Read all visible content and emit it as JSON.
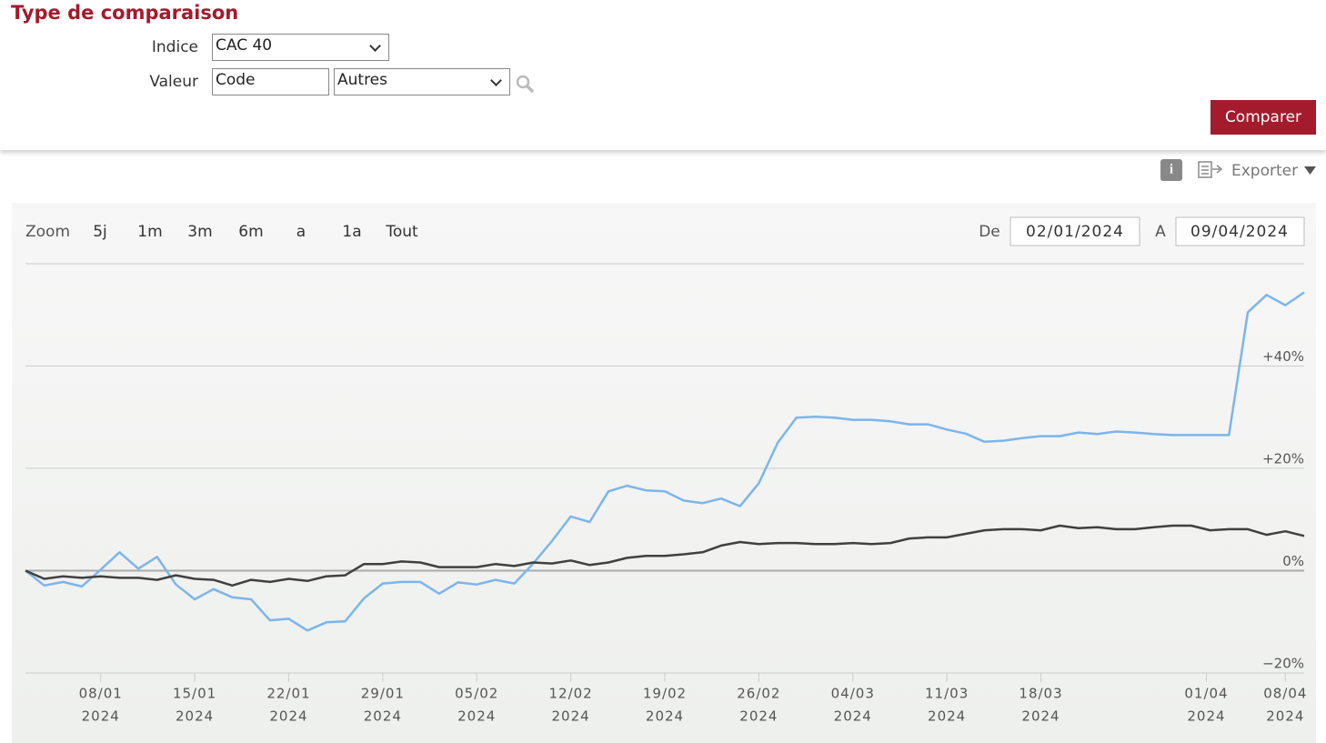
{
  "form": {
    "title": "Type de comparaison",
    "indice_label": "Indice",
    "indice_value": "CAC 40",
    "valeur_label": "Valeur",
    "code_value": "Code",
    "autres_value": "Autres",
    "button": "Comparer"
  },
  "toolbar": {
    "export": "Exporter"
  },
  "zoom": {
    "label": "Zoom",
    "buttons": [
      "5j",
      "1m",
      "3m",
      "6m",
      "a",
      "1a",
      "Tout"
    ]
  },
  "range": {
    "from_label": "De",
    "from": "02/01/2024",
    "to_label": "A",
    "to": "09/04/2024"
  },
  "chart_data": {
    "type": "line",
    "x": [
      "02/01/2024",
      "03/01/2024",
      "04/01/2024",
      "05/01/2024",
      "08/01/2024",
      "09/01/2024",
      "10/01/2024",
      "11/01/2024",
      "12/01/2024",
      "15/01/2024",
      "16/01/2024",
      "17/01/2024",
      "18/01/2024",
      "19/01/2024",
      "22/01/2024",
      "23/01/2024",
      "24/01/2024",
      "25/01/2024",
      "26/01/2024",
      "29/01/2024",
      "30/01/2024",
      "31/01/2024",
      "01/02/2024",
      "02/02/2024",
      "05/02/2024",
      "06/02/2024",
      "07/02/2024",
      "08/02/2024",
      "09/02/2024",
      "12/02/2024",
      "13/02/2024",
      "14/02/2024",
      "15/02/2024",
      "16/02/2024",
      "19/02/2024",
      "20/02/2024",
      "21/02/2024",
      "22/02/2024",
      "23/02/2024",
      "26/02/2024",
      "27/02/2024",
      "28/02/2024",
      "29/02/2024",
      "01/03/2024",
      "04/03/2024",
      "05/03/2024",
      "06/03/2024",
      "07/03/2024",
      "08/03/2024",
      "11/03/2024",
      "12/03/2024",
      "13/03/2024",
      "14/03/2024",
      "15/03/2024",
      "18/03/2024",
      "19/03/2024",
      "20/03/2024",
      "21/03/2024",
      "22/03/2024",
      "25/03/2024",
      "26/03/2024",
      "27/03/2024",
      "28/03/2024",
      "02/04/2024",
      "03/04/2024",
      "04/04/2024",
      "05/04/2024",
      "08/04/2024",
      "09/04/2024"
    ],
    "series": [
      {
        "color": "#7cb5ec",
        "values": [
          0,
          -2.9,
          -2.2,
          -3.1,
          0.2,
          3.6,
          0.4,
          2.7,
          -2.7,
          -5.6,
          -3.6,
          -5.2,
          -5.6,
          -9.7,
          -9.4,
          -11.7,
          -10.1,
          -9.9,
          -5.4,
          -2.5,
          -2.2,
          -2.2,
          -4.5,
          -2.3,
          -2.7,
          -1.8,
          -2.5,
          1.4,
          5.8,
          10.6,
          9.5,
          15.5,
          16.6,
          15.7,
          15.5,
          13.7,
          13.2,
          14.1,
          12.6,
          17.1,
          25,
          29.9,
          30.1,
          29.9,
          29.5,
          29.5,
          29.2,
          28.6,
          28.6,
          27.6,
          26.8,
          25.2,
          25.4,
          25.9,
          26.3,
          26.3,
          27,
          26.7,
          27.2,
          27,
          26.7,
          26.5,
          26.5,
          26.5,
          26.5,
          50.5,
          53.9,
          51.9,
          54.4
        ]
      },
      {
        "color": "#404040",
        "values": [
          0,
          -1.6,
          -1.1,
          -1.4,
          -1.1,
          -1.4,
          -1.4,
          -1.8,
          -0.9,
          -1.6,
          -1.8,
          -2.9,
          -1.8,
          -2.2,
          -1.6,
          -2.0,
          -1.1,
          -0.9,
          1.3,
          1.3,
          1.8,
          1.6,
          0.7,
          0.7,
          0.7,
          1.3,
          0.9,
          1.6,
          1.4,
          2.0,
          1.1,
          1.6,
          2.5,
          2.9,
          2.9,
          3.2,
          3.6,
          4.9,
          5.6,
          5.2,
          5.4,
          5.4,
          5.2,
          5.2,
          5.4,
          5.2,
          5.4,
          6.3,
          6.5,
          6.5,
          7.2,
          7.9,
          8.1,
          8.1,
          7.9,
          8.8,
          8.3,
          8.5,
          8.1,
          8.1,
          8.5,
          8.8,
          8.8,
          7.9,
          8.1,
          8.1,
          7.0,
          7.7,
          6.8
        ]
      }
    ],
    "ylim": [
      -20,
      60
    ],
    "yticks": [
      {
        "value": -20,
        "label": "−20%"
      },
      {
        "value": 0,
        "label": "0%"
      },
      {
        "value": 20,
        "label": "+20%"
      },
      {
        "value": 40,
        "label": "+40%"
      }
    ],
    "xticks": [
      {
        "value": "08/01/2024",
        "label": "08/01",
        "year": "2024"
      },
      {
        "value": "15/01/2024",
        "label": "15/01",
        "year": "2024"
      },
      {
        "value": "22/01/2024",
        "label": "22/01",
        "year": "2024"
      },
      {
        "value": "29/01/2024",
        "label": "29/01",
        "year": "2024"
      },
      {
        "value": "05/02/2024",
        "label": "05/02",
        "year": "2024"
      },
      {
        "value": "12/02/2024",
        "label": "12/02",
        "year": "2024"
      },
      {
        "value": "19/02/2024",
        "label": "19/02",
        "year": "2024"
      },
      {
        "value": "26/02/2024",
        "label": "26/02",
        "year": "2024"
      },
      {
        "value": "04/03/2024",
        "label": "04/03",
        "year": "2024"
      },
      {
        "value": "11/03/2024",
        "label": "11/03",
        "year": "2024"
      },
      {
        "value": "18/03/2024",
        "label": "18/03",
        "year": "2024"
      },
      {
        "value": "01/04/2024",
        "label": "01/04",
        "year": "2024"
      },
      {
        "value": "08/04/2024",
        "label": "08/04",
        "year": "2024"
      }
    ],
    "grid": true
  }
}
